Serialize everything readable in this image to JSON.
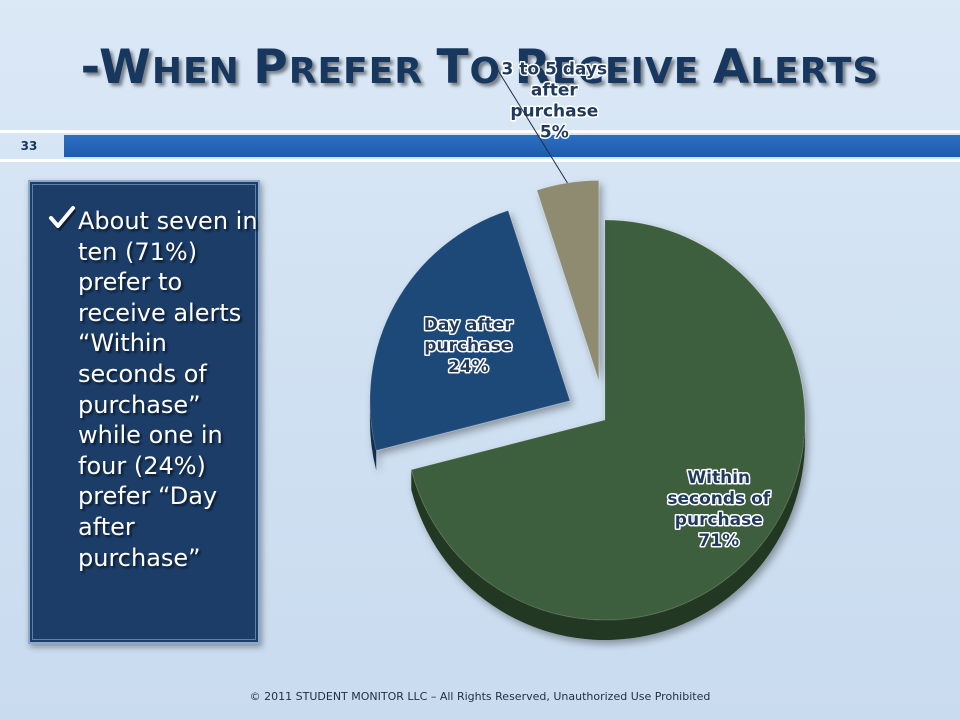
{
  "slide": {
    "title_parts": [
      {
        "text": "-W",
        "style": "cap"
      },
      {
        "text": "HEN ",
        "style": "sc"
      },
      {
        "text": "P",
        "style": "cap"
      },
      {
        "text": "REFER ",
        "style": "sc"
      },
      {
        "text": "T",
        "style": "cap"
      },
      {
        "text": "O ",
        "style": "sc"
      },
      {
        "text": "R",
        "style": "cap"
      },
      {
        "text": "ECEIVE ",
        "style": "sc"
      },
      {
        "text": "A",
        "style": "cap"
      },
      {
        "text": "LERTS",
        "style": "sc"
      }
    ],
    "number": "33",
    "footer": "© 2011 STUDENT MONITOR LLC – All Rights Reserved, Unauthorized Use Prohibited"
  },
  "callout": {
    "bullet_icon": "check-mark-icon",
    "text": "About seven in ten (71%) prefer to receive alerts “Within seconds of purchase” while one in four (24%) prefer “Day after purchase”"
  },
  "colors": {
    "title": "#17375e",
    "callout_bg": "#1b3d68",
    "slice_within": "#3e5e3c",
    "slice_day_after": "#1f4a78",
    "slice_3to5": "#8f8b70",
    "label_text": "#1f3a5c"
  },
  "chart_data": {
    "type": "pie",
    "three_d": true,
    "exploded": true,
    "legend": "none",
    "slices": [
      {
        "label_lines": [
          "Within",
          "seconds of",
          "purchase",
          "71%"
        ],
        "value": 71
      },
      {
        "label_lines": [
          "Day after",
          "purchase",
          "24%"
        ],
        "value": 24
      },
      {
        "label_lines": [
          "3 to 5 days",
          "after",
          "purchase",
          "5%"
        ],
        "value": 5
      }
    ]
  }
}
